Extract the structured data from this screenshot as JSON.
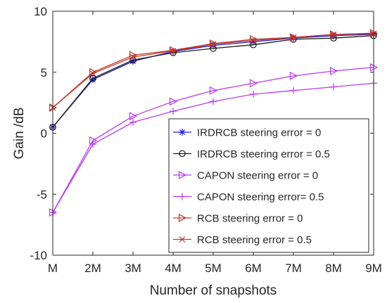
{
  "chart_data": {
    "type": "line",
    "xlabel": "Number of snapshots",
    "ylabel": "Gain /dB",
    "x_ticks": [
      "M",
      "2M",
      "3M",
      "4M",
      "5M",
      "6M",
      "7M",
      "8M",
      "9M"
    ],
    "x": [
      1,
      2,
      3,
      4,
      5,
      6,
      7,
      8,
      9
    ],
    "xlim": [
      1,
      9
    ],
    "ylim": [
      -10,
      10
    ],
    "y_ticks": [
      -10,
      -5,
      0,
      5,
      10
    ],
    "y_tick_labels": [
      "-10",
      "-5",
      "0",
      "5",
      "10"
    ],
    "grid": false,
    "legend_position": "lower-right",
    "series": [
      {
        "name": "IRDRCB steering error = 0",
        "color": "#1f1fe0",
        "marker": "asterisk",
        "values": [
          0.5,
          4.4,
          5.9,
          6.7,
          7.2,
          7.5,
          7.8,
          8.0,
          8.1
        ]
      },
      {
        "name": "IRDRCB steering error = 0.5",
        "color": "#1a1a1a",
        "marker": "circle",
        "values": [
          0.5,
          4.5,
          6.0,
          6.6,
          6.95,
          7.25,
          7.7,
          7.8,
          8.0
        ]
      },
      {
        "name": "CAPON steering error = 0",
        "color": "#b83cf0",
        "marker": "triangle-right",
        "values": [
          -6.5,
          -0.6,
          1.4,
          2.6,
          3.5,
          4.1,
          4.7,
          5.1,
          5.4
        ]
      },
      {
        "name": "CAPON steering error= 0.5",
        "color": "#b83cf0",
        "marker": "plus",
        "values": [
          -6.5,
          -0.9,
          0.9,
          1.8,
          2.6,
          3.2,
          3.5,
          3.8,
          4.1
        ]
      },
      {
        "name": "RCB steering error = 0",
        "color": "#c0392b",
        "marker": "triangle-right",
        "values": [
          2.1,
          5.0,
          6.4,
          6.8,
          7.35,
          7.7,
          7.85,
          8.1,
          8.2
        ]
      },
      {
        "name": "RCB steering error = 0.5",
        "color": "#c0392b",
        "marker": "x",
        "values": [
          2.1,
          4.9,
          6.25,
          6.75,
          7.3,
          7.6,
          7.85,
          8.1,
          8.15
        ]
      }
    ]
  }
}
